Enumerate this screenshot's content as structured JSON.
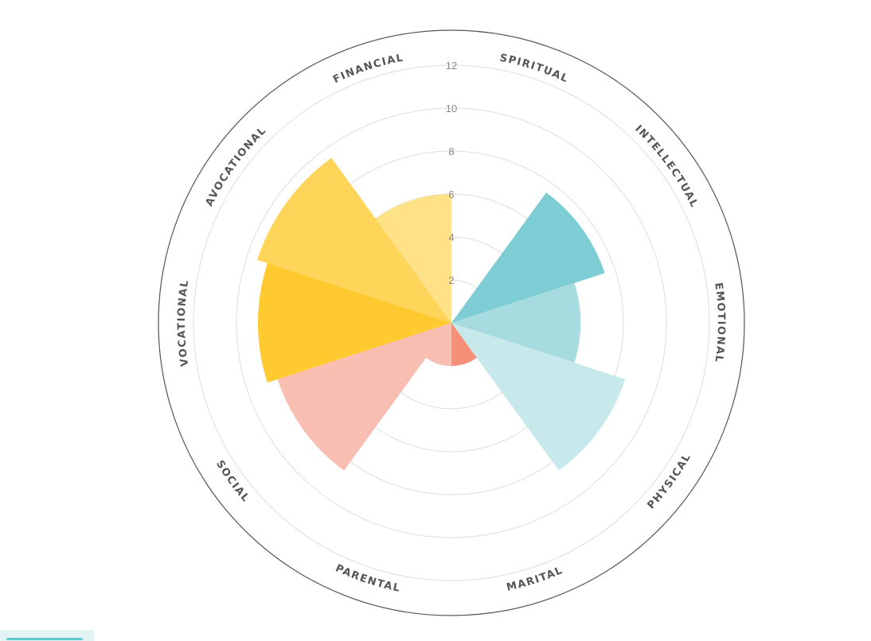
{
  "chart_data": {
    "type": "polar-area",
    "title": "",
    "categories": [
      "SPIRITUAL",
      "INTELLECTUAL",
      "EMOTIONAL",
      "PHYSICAL",
      "MARITAL",
      "PARENTAL",
      "SOCIAL",
      "VOCATIONAL",
      "AVOCATIONAL",
      "FINANCIAL"
    ],
    "values": [
      0,
      7.5,
      6,
      8.5,
      2,
      2,
      8.5,
      9,
      9.5,
      6
    ],
    "colors": [
      "#74c9d1",
      "#74c9d1",
      "#9fd9dd",
      "#c3e7ea",
      "#f4876e",
      "#f8b9ab",
      "#f8b9ab",
      "#fec61f",
      "#fed24c",
      "#ffdf7e"
    ],
    "rlim": [
      0,
      12
    ],
    "radial_ticks": [
      "2",
      "4",
      "6",
      "8",
      "10",
      "12"
    ],
    "tick_values": [
      2,
      4,
      6,
      8,
      10,
      12
    ],
    "grid": true
  },
  "colors": {
    "grid": "#dddddd",
    "outer_ring": "#555555",
    "tick_text": "#888888",
    "category_text": "#555555",
    "footer_tab": "#e3f4f5",
    "footer_accent": "#62c7cf"
  }
}
